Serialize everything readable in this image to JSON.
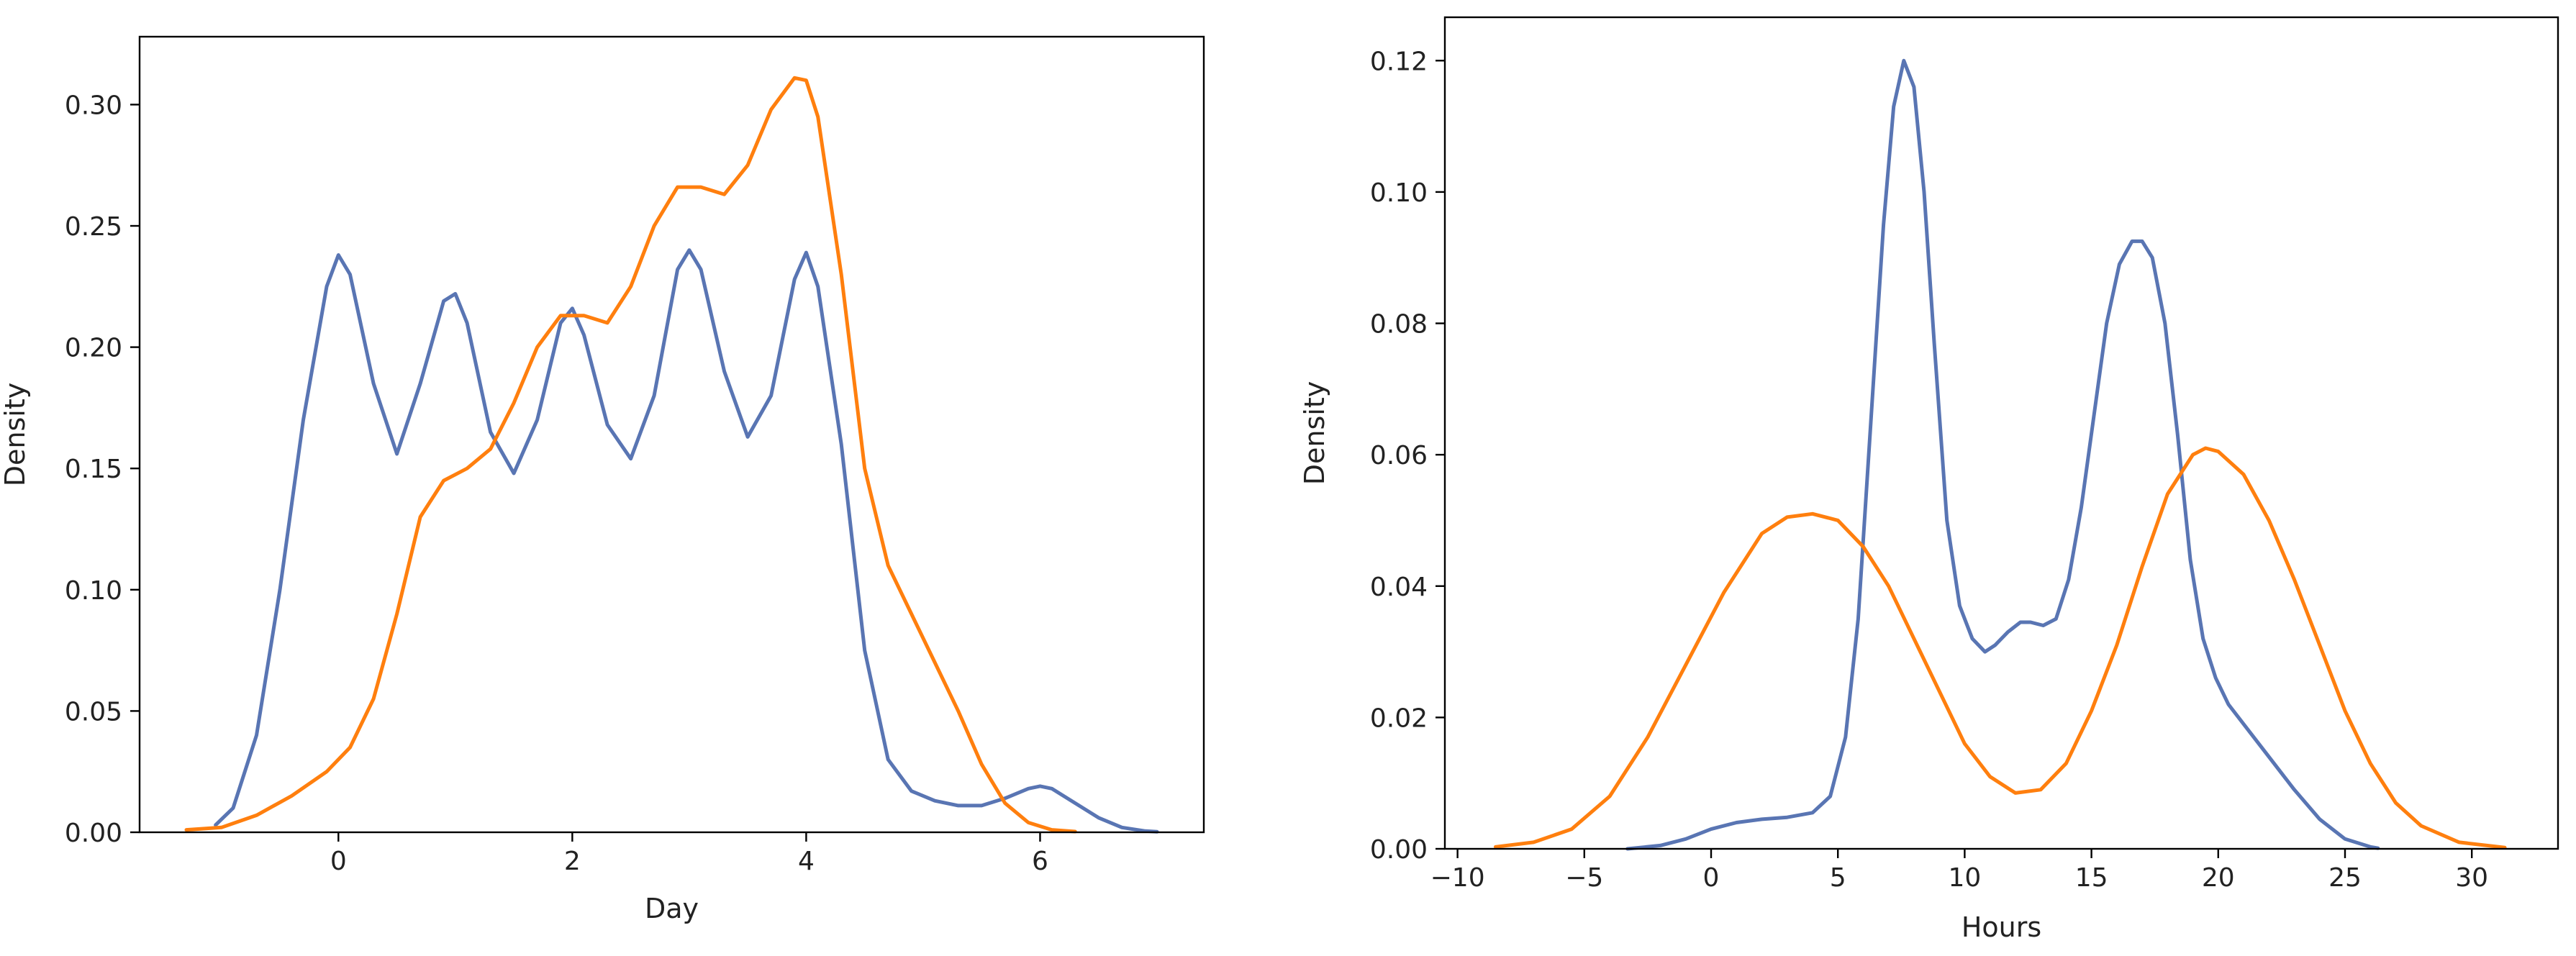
{
  "chart_data": [
    {
      "type": "line",
      "xlabel": "Day",
      "ylabel": "Density",
      "xlim": [
        -1.7,
        7.4
      ],
      "ylim": [
        0,
        0.328
      ],
      "xticks": [
        0,
        2,
        4,
        6
      ],
      "xtick_labels": [
        "0",
        "2",
        "4",
        "6"
      ],
      "yticks": [
        0.0,
        0.05,
        0.1,
        0.15,
        0.2,
        0.25,
        0.3
      ],
      "ytick_labels": [
        "0.00",
        "0.05",
        "0.10",
        "0.15",
        "0.20",
        "0.25",
        "0.30"
      ],
      "grid": false,
      "series": [
        {
          "color": "#5975b3",
          "x": [
            -1.05,
            -0.9,
            -0.7,
            -0.5,
            -0.3,
            -0.1,
            0.0,
            0.1,
            0.3,
            0.5,
            0.7,
            0.9,
            1.0,
            1.1,
            1.3,
            1.5,
            1.7,
            1.9,
            2.0,
            2.1,
            2.3,
            2.5,
            2.7,
            2.9,
            3.0,
            3.1,
            3.3,
            3.5,
            3.7,
            3.9,
            4.0,
            4.1,
            4.3,
            4.5,
            4.7,
            4.9,
            5.1,
            5.3,
            5.5,
            5.7,
            5.9,
            6.0,
            6.1,
            6.3,
            6.5,
            6.7,
            6.9,
            7.0
          ],
          "y": [
            0.003,
            0.01,
            0.04,
            0.1,
            0.17,
            0.225,
            0.238,
            0.23,
            0.185,
            0.156,
            0.185,
            0.219,
            0.222,
            0.21,
            0.165,
            0.148,
            0.17,
            0.21,
            0.216,
            0.205,
            0.168,
            0.154,
            0.18,
            0.232,
            0.24,
            0.232,
            0.19,
            0.163,
            0.18,
            0.228,
            0.239,
            0.225,
            0.16,
            0.075,
            0.03,
            0.017,
            0.013,
            0.011,
            0.011,
            0.014,
            0.018,
            0.019,
            0.018,
            0.012,
            0.006,
            0.002,
            0.0005,
            0.0002
          ]
        },
        {
          "color": "#ff7f0e",
          "x": [
            -1.3,
            -1.0,
            -0.7,
            -0.4,
            -0.1,
            0.1,
            0.3,
            0.5,
            0.7,
            0.9,
            1.1,
            1.3,
            1.5,
            1.7,
            1.9,
            2.1,
            2.3,
            2.5,
            2.7,
            2.9,
            3.1,
            3.3,
            3.5,
            3.7,
            3.9,
            4.0,
            4.1,
            4.3,
            4.5,
            4.7,
            4.9,
            5.1,
            5.3,
            5.5,
            5.7,
            5.9,
            6.1,
            6.3
          ],
          "y": [
            0.001,
            0.002,
            0.007,
            0.015,
            0.025,
            0.035,
            0.055,
            0.09,
            0.13,
            0.145,
            0.15,
            0.158,
            0.177,
            0.2,
            0.213,
            0.213,
            0.21,
            0.225,
            0.25,
            0.266,
            0.266,
            0.263,
            0.275,
            0.298,
            0.311,
            0.31,
            0.295,
            0.23,
            0.15,
            0.11,
            0.09,
            0.07,
            0.05,
            0.028,
            0.012,
            0.004,
            0.001,
            0.0003
          ]
        }
      ]
    },
    {
      "type": "line",
      "xlabel": "Hours",
      "ylabel": "Density",
      "xlim": [
        -10.5,
        33.4
      ],
      "ylim": [
        0,
        0.1266
      ],
      "xticks": [
        -10,
        -5,
        0,
        5,
        10,
        15,
        20,
        25,
        30
      ],
      "xtick_labels": [
        "−10",
        "−5",
        "0",
        "5",
        "10",
        "15",
        "20",
        "25",
        "30"
      ],
      "yticks": [
        0.0,
        0.02,
        0.04,
        0.06,
        0.08,
        0.1,
        0.12
      ],
      "ytick_labels": [
        "0.00",
        "0.02",
        "0.04",
        "0.06",
        "0.08",
        "0.10",
        "0.12"
      ],
      "grid": false,
      "series": [
        {
          "color": "#5975b3",
          "x": [
            -3.3,
            -2.0,
            -1.0,
            0.0,
            1.0,
            2.0,
            3.0,
            4.0,
            4.7,
            5.3,
            5.8,
            6.3,
            6.8,
            7.2,
            7.6,
            8.0,
            8.4,
            8.8,
            9.3,
            9.8,
            10.3,
            10.8,
            11.2,
            11.7,
            12.2,
            12.6,
            13.1,
            13.6,
            14.1,
            14.6,
            15.1,
            15.6,
            16.1,
            16.6,
            17.0,
            17.4,
            17.9,
            18.4,
            18.9,
            19.4,
            19.9,
            20.4,
            21.0,
            22.0,
            23.0,
            24.0,
            25.0,
            26.0,
            26.3
          ],
          "y": [
            0.0,
            0.0005,
            0.0015,
            0.003,
            0.004,
            0.0045,
            0.0048,
            0.0055,
            0.008,
            0.017,
            0.035,
            0.065,
            0.095,
            0.113,
            0.12,
            0.116,
            0.1,
            0.077,
            0.05,
            0.037,
            0.032,
            0.03,
            0.031,
            0.033,
            0.0345,
            0.0345,
            0.034,
            0.035,
            0.041,
            0.052,
            0.066,
            0.08,
            0.089,
            0.0925,
            0.0925,
            0.09,
            0.08,
            0.063,
            0.044,
            0.032,
            0.026,
            0.022,
            0.019,
            0.014,
            0.009,
            0.0045,
            0.0015,
            0.0003,
            0.0001
          ]
        },
        {
          "color": "#ff7f0e",
          "x": [
            -8.5,
            -7.0,
            -5.5,
            -4.0,
            -2.5,
            -1.0,
            0.5,
            2.0,
            3.0,
            4.0,
            5.0,
            6.0,
            7.0,
            8.0,
            9.0,
            10.0,
            11.0,
            12.0,
            13.0,
            14.0,
            15.0,
            16.0,
            17.0,
            18.0,
            19.0,
            19.5,
            20.0,
            21.0,
            22.0,
            23.0,
            24.0,
            25.0,
            26.0,
            27.0,
            28.0,
            29.5,
            31.3
          ],
          "y": [
            0.0003,
            0.001,
            0.003,
            0.008,
            0.017,
            0.028,
            0.039,
            0.048,
            0.0505,
            0.051,
            0.05,
            0.046,
            0.04,
            0.032,
            0.024,
            0.016,
            0.011,
            0.0085,
            0.009,
            0.013,
            0.021,
            0.031,
            0.043,
            0.054,
            0.06,
            0.061,
            0.0605,
            0.057,
            0.05,
            0.041,
            0.031,
            0.021,
            0.013,
            0.007,
            0.0035,
            0.001,
            0.0002
          ]
        }
      ]
    }
  ]
}
